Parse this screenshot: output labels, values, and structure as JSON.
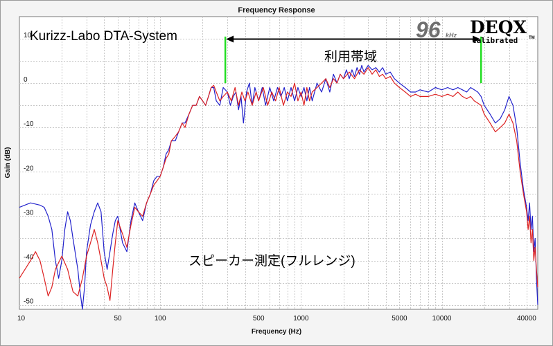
{
  "chart_data": {
    "type": "line",
    "title": "Frequency Response",
    "xlabel": "Frequency (Hz)",
    "ylabel": "Gain (dB)",
    "x_scale": "log",
    "xlim": [
      10,
      48000
    ],
    "ylim": [
      -51,
      15
    ],
    "grid": true,
    "x_tick_labels": [
      "10",
      "50",
      "100",
      "500",
      "1000",
      "5000",
      "10000",
      "40000"
    ],
    "x_tick_values": [
      10,
      50,
      100,
      500,
      1000,
      5000,
      10000,
      40000
    ],
    "y_tick_labels": [
      "10",
      "0",
      "-10",
      "-20",
      "-30",
      "-40",
      "-50"
    ],
    "y_tick_values": [
      10,
      0,
      -10,
      -20,
      -30,
      -40,
      -50
    ],
    "series": [
      {
        "color": "#2222cc",
        "points": [
          [
            10,
            -28
          ],
          [
            12,
            -27
          ],
          [
            14,
            -27.5
          ],
          [
            15,
            -28
          ],
          [
            16,
            -30
          ],
          [
            17,
            -33
          ],
          [
            18,
            -40
          ],
          [
            19,
            -44
          ],
          [
            20,
            -40
          ],
          [
            21,
            -33
          ],
          [
            22,
            -29
          ],
          [
            23,
            -31
          ],
          [
            24,
            -35
          ],
          [
            26,
            -42
          ],
          [
            27,
            -47
          ],
          [
            28,
            -51
          ],
          [
            29,
            -46
          ],
          [
            30,
            -38
          ],
          [
            32,
            -32
          ],
          [
            34,
            -29
          ],
          [
            36,
            -27
          ],
          [
            38,
            -29
          ],
          [
            40,
            -38
          ],
          [
            42,
            -42
          ],
          [
            44,
            -38
          ],
          [
            46,
            -34
          ],
          [
            48,
            -31
          ],
          [
            50,
            -30
          ],
          [
            54,
            -36
          ],
          [
            58,
            -38
          ],
          [
            62,
            -31
          ],
          [
            66,
            -27
          ],
          [
            70,
            -29
          ],
          [
            75,
            -31
          ],
          [
            80,
            -27
          ],
          [
            85,
            -25
          ],
          [
            90,
            -22
          ],
          [
            95,
            -21
          ],
          [
            100,
            -21
          ],
          [
            105,
            -19
          ],
          [
            110,
            -16
          ],
          [
            115,
            -15
          ],
          [
            120,
            -13
          ],
          [
            128,
            -13
          ],
          [
            135,
            -11
          ],
          [
            143,
            -9
          ],
          [
            150,
            -9
          ],
          [
            160,
            -7
          ],
          [
            170,
            -5
          ],
          [
            180,
            -5
          ],
          [
            190,
            -3
          ],
          [
            200,
            -4
          ],
          [
            210,
            -5
          ],
          [
            220,
            -3
          ],
          [
            230,
            -1
          ],
          [
            240,
            -1
          ],
          [
            250,
            -4
          ],
          [
            265,
            -5
          ],
          [
            280,
            -1
          ],
          [
            300,
            -2
          ],
          [
            315,
            -5
          ],
          [
            330,
            -3
          ],
          [
            345,
            -2
          ],
          [
            360,
            -6
          ],
          [
            375,
            -3
          ],
          [
            390,
            -9
          ],
          [
            410,
            -2
          ],
          [
            430,
            0
          ],
          [
            450,
            -5
          ],
          [
            470,
            -1
          ],
          [
            500,
            -4
          ],
          [
            530,
            -1
          ],
          [
            560,
            -5
          ],
          [
            600,
            -1
          ],
          [
            640,
            -4
          ],
          [
            680,
            -1
          ],
          [
            720,
            -3
          ],
          [
            760,
            -1
          ],
          [
            800,
            -4
          ],
          [
            850,
            -1
          ],
          [
            900,
            -4
          ],
          [
            950,
            -1
          ],
          [
            1000,
            -3
          ],
          [
            1050,
            -1
          ],
          [
            1100,
            -4
          ],
          [
            1150,
            -1
          ],
          [
            1200,
            -4
          ],
          [
            1300,
            0
          ],
          [
            1400,
            -2
          ],
          [
            1500,
            1
          ],
          [
            1600,
            -2
          ],
          [
            1700,
            2
          ],
          [
            1800,
            0
          ],
          [
            1900,
            2
          ],
          [
            2000,
            1
          ],
          [
            2100,
            3
          ],
          [
            2200,
            1
          ],
          [
            2300,
            3
          ],
          [
            2400,
            1.5
          ],
          [
            2500,
            3.5
          ],
          [
            2600,
            2
          ],
          [
            2700,
            4
          ],
          [
            2800,
            2.5
          ],
          [
            3000,
            4
          ],
          [
            3200,
            3
          ],
          [
            3400,
            3.5
          ],
          [
            3600,
            2.5
          ],
          [
            3800,
            3.5
          ],
          [
            4000,
            2
          ],
          [
            4300,
            2.5
          ],
          [
            4600,
            1
          ],
          [
            5000,
            0
          ],
          [
            5500,
            -1
          ],
          [
            6000,
            -2
          ],
          [
            6500,
            -2
          ],
          [
            7000,
            -1.5
          ],
          [
            8000,
            -2
          ],
          [
            9000,
            -1
          ],
          [
            10000,
            -1.5
          ],
          [
            11000,
            -1
          ],
          [
            12000,
            -1.5
          ],
          [
            13000,
            -1
          ],
          [
            14000,
            -1.5
          ],
          [
            15000,
            -2
          ],
          [
            16000,
            -1
          ],
          [
            17000,
            -1.5
          ],
          [
            18000,
            -2
          ],
          [
            19000,
            -3
          ],
          [
            20000,
            -5
          ],
          [
            22000,
            -7
          ],
          [
            24000,
            -9
          ],
          [
            26000,
            -8
          ],
          [
            28000,
            -6
          ],
          [
            30000,
            -3
          ],
          [
            32000,
            -5
          ],
          [
            34000,
            -10
          ],
          [
            36000,
            -18
          ],
          [
            38000,
            -24
          ],
          [
            40000,
            -28
          ],
          [
            41000,
            -31
          ],
          [
            42000,
            -27
          ],
          [
            43000,
            -33
          ],
          [
            44000,
            -30
          ],
          [
            45000,
            -38
          ],
          [
            46000,
            -35
          ],
          [
            47000,
            -44
          ],
          [
            48000,
            -50
          ]
        ]
      },
      {
        "color": "#dd2222",
        "points": [
          [
            10,
            -44
          ],
          [
            12,
            -40
          ],
          [
            13,
            -38
          ],
          [
            14,
            -40
          ],
          [
            15,
            -44
          ],
          [
            16,
            -48
          ],
          [
            17,
            -46
          ],
          [
            18,
            -42
          ],
          [
            20,
            -39
          ],
          [
            22,
            -42
          ],
          [
            24,
            -47
          ],
          [
            26,
            -48
          ],
          [
            28,
            -44
          ],
          [
            30,
            -39
          ],
          [
            32,
            -36
          ],
          [
            34,
            -33
          ],
          [
            36,
            -36
          ],
          [
            38,
            -40
          ],
          [
            40,
            -44
          ],
          [
            42,
            -46
          ],
          [
            44,
            -49
          ],
          [
            46,
            -42
          ],
          [
            48,
            -36
          ],
          [
            50,
            -31
          ],
          [
            54,
            -34
          ],
          [
            58,
            -37
          ],
          [
            62,
            -32
          ],
          [
            66,
            -28
          ],
          [
            70,
            -29
          ],
          [
            75,
            -30
          ],
          [
            80,
            -27
          ],
          [
            85,
            -25
          ],
          [
            90,
            -23
          ],
          [
            95,
            -22
          ],
          [
            100,
            -21
          ],
          [
            105,
            -19
          ],
          [
            110,
            -17
          ],
          [
            115,
            -16
          ],
          [
            120,
            -13
          ],
          [
            128,
            -12
          ],
          [
            135,
            -11
          ],
          [
            143,
            -9
          ],
          [
            150,
            -10
          ],
          [
            160,
            -7
          ],
          [
            170,
            -5
          ],
          [
            180,
            -5
          ],
          [
            190,
            -3
          ],
          [
            200,
            -4
          ],
          [
            210,
            -5
          ],
          [
            220,
            -3
          ],
          [
            230,
            -1
          ],
          [
            240,
            -0.5
          ],
          [
            250,
            -2
          ],
          [
            265,
            -4
          ],
          [
            280,
            -3
          ],
          [
            300,
            -2
          ],
          [
            320,
            -4
          ],
          [
            340,
            -1
          ],
          [
            360,
            -5
          ],
          [
            380,
            -2
          ],
          [
            400,
            -4
          ],
          [
            420,
            -2
          ],
          [
            450,
            -5
          ],
          [
            480,
            -2
          ],
          [
            500,
            -4
          ],
          [
            540,
            -1
          ],
          [
            580,
            -5
          ],
          [
            620,
            -2
          ],
          [
            660,
            -4
          ],
          [
            700,
            -1
          ],
          [
            750,
            -5
          ],
          [
            800,
            -2
          ],
          [
            850,
            -3
          ],
          [
            900,
            0
          ],
          [
            950,
            -4
          ],
          [
            1000,
            -2
          ],
          [
            1050,
            -5
          ],
          [
            1100,
            -1
          ],
          [
            1150,
            -4
          ],
          [
            1200,
            -2
          ],
          [
            1300,
            -1
          ],
          [
            1400,
            0
          ],
          [
            1500,
            1
          ],
          [
            1600,
            -1
          ],
          [
            1700,
            1
          ],
          [
            1800,
            0
          ],
          [
            1900,
            2
          ],
          [
            2000,
            1
          ],
          [
            2200,
            2.5
          ],
          [
            2400,
            1
          ],
          [
            2600,
            3
          ],
          [
            2800,
            2
          ],
          [
            3000,
            3.5
          ],
          [
            3200,
            2
          ],
          [
            3400,
            3
          ],
          [
            3600,
            1.5
          ],
          [
            3800,
            2
          ],
          [
            4000,
            1
          ],
          [
            4300,
            1.5
          ],
          [
            4600,
            0
          ],
          [
            5000,
            -1
          ],
          [
            5500,
            -2
          ],
          [
            6000,
            -3
          ],
          [
            6500,
            -2.5
          ],
          [
            7000,
            -3
          ],
          [
            8000,
            -3
          ],
          [
            9000,
            -2.5
          ],
          [
            10000,
            -3
          ],
          [
            11000,
            -2.5
          ],
          [
            12000,
            -3
          ],
          [
            13000,
            -2
          ],
          [
            14000,
            -3
          ],
          [
            15000,
            -3.5
          ],
          [
            16000,
            -3
          ],
          [
            17000,
            -4
          ],
          [
            18000,
            -4.5
          ],
          [
            19000,
            -5
          ],
          [
            20000,
            -7
          ],
          [
            22000,
            -9
          ],
          [
            24000,
            -11
          ],
          [
            26000,
            -10
          ],
          [
            28000,
            -9
          ],
          [
            30000,
            -7
          ],
          [
            32000,
            -9
          ],
          [
            34000,
            -13
          ],
          [
            36000,
            -20
          ],
          [
            38000,
            -25
          ],
          [
            40000,
            -29
          ],
          [
            41000,
            -33
          ],
          [
            42000,
            -30
          ],
          [
            43000,
            -36
          ],
          [
            44000,
            -33
          ],
          [
            45000,
            -40
          ],
          [
            46000,
            -37
          ],
          [
            47000,
            -42
          ],
          [
            48000,
            -46
          ]
        ]
      }
    ],
    "annotations": {
      "system_label": "Kurizz-Labo DTA-System",
      "band_label": "利用帯域",
      "band_range_hz": [
        290,
        19000
      ],
      "band_arrow_gain_db": 10,
      "band_marker_top_db": 10.5,
      "band_marker_bottom_db": 0,
      "band_marker_color": "#22dd22",
      "measurement_label": "スピーカー測定(フルレンジ)"
    },
    "badge": {
      "sample_rate": "96",
      "unit": "kHz",
      "brand": "DEQX",
      "tagline": "Calibrated",
      "tm": "TM"
    }
  }
}
